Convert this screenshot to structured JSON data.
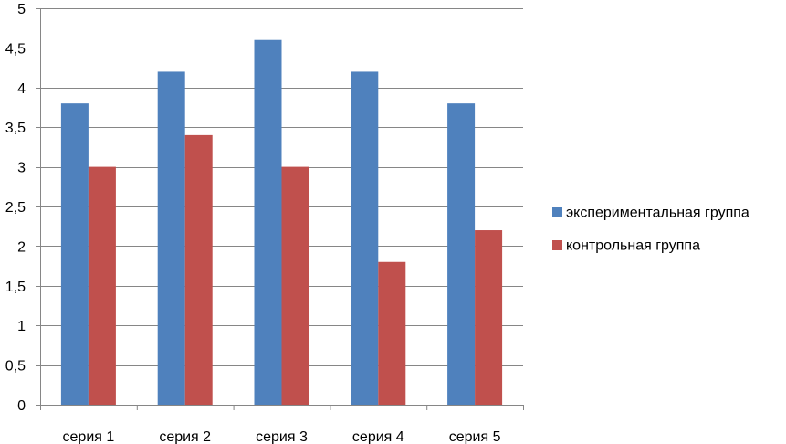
{
  "chart_data": {
    "type": "bar",
    "categories": [
      "серия 1",
      "серия 2",
      "серия 3",
      "серия 4",
      "серия 5"
    ],
    "series": [
      {
        "name": "экспериментальная группа",
        "values": [
          3.8,
          4.2,
          4.6,
          4.2,
          3.8
        ],
        "color": "#4F81BD"
      },
      {
        "name": "контрольная группа",
        "values": [
          3.0,
          3.4,
          3.0,
          1.8,
          2.2
        ],
        "color": "#C0504D"
      }
    ],
    "title": "",
    "xlabel": "",
    "ylabel": "",
    "ylim": [
      0,
      5
    ],
    "yticks": [
      "0",
      "0,5",
      "1",
      "1,5",
      "2",
      "2,5",
      "3",
      "3,5",
      "4",
      "4,5",
      "5"
    ],
    "grid": true,
    "legend": "right",
    "gridline_color": "#868686",
    "axis_color": "#868686"
  }
}
